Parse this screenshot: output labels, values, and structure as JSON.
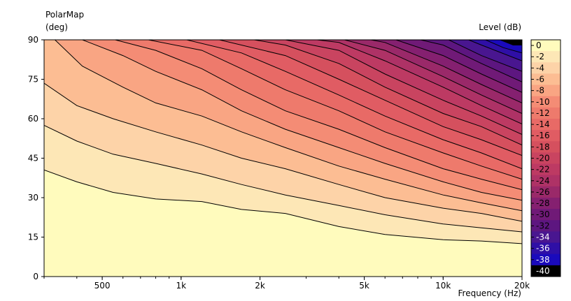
{
  "chart_data": {
    "type": "heatmap",
    "title": "PolarMap",
    "ylabel": "(deg)",
    "xlabel": "Frequency  (Hz)",
    "colorbar_label": "Level  (dB)",
    "x_scale": "log",
    "xlim": [
      300,
      20000
    ],
    "ylim": [
      0,
      90
    ],
    "x_ticks": [
      {
        "value": 500,
        "label": "500"
      },
      {
        "value": 1000,
        "label": "1k"
      },
      {
        "value": 2000,
        "label": "2k"
      },
      {
        "value": 5000,
        "label": "5k"
      },
      {
        "value": 10000,
        "label": "10k"
      },
      {
        "value": 20000,
        "label": "20k"
      }
    ],
    "y_ticks": [
      0,
      15,
      30,
      45,
      60,
      75,
      90
    ],
    "colorbar": {
      "levels": [
        0,
        -2,
        -4,
        -6,
        -8,
        -10,
        -12,
        -14,
        -16,
        -18,
        -20,
        -22,
        -24,
        -26,
        -28,
        -30,
        -32,
        -34,
        -36,
        -38,
        -40
      ],
      "colors": [
        "#fffbbd",
        "#fde7b6",
        "#fdd3a8",
        "#fcbd93",
        "#f9a583",
        "#f48c75",
        "#ee7a6c",
        "#e86a66",
        "#e05c63",
        "#d5505e",
        "#c94460",
        "#bd3a63",
        "#ae3266",
        "#9a2969",
        "#852070",
        "#701a77",
        "#5d1680",
        "#491690",
        "#2f0fa6",
        "#1a0abc",
        "#000000"
      ]
    },
    "contours": [
      {
        "level": -2,
        "points": [
          [
            300,
            40.5
          ],
          [
            400,
            36
          ],
          [
            550,
            32
          ],
          [
            800,
            29.5
          ],
          [
            1200,
            28.5
          ],
          [
            1700,
            25.5
          ],
          [
            2500,
            24
          ],
          [
            4000,
            19
          ],
          [
            6000,
            16
          ],
          [
            10000,
            14
          ],
          [
            14000,
            13.5
          ],
          [
            20000,
            12.5
          ]
        ]
      },
      {
        "level": -4,
        "points": [
          [
            300,
            57.5
          ],
          [
            400,
            51.5
          ],
          [
            550,
            46.5
          ],
          [
            800,
            43
          ],
          [
            1200,
            39
          ],
          [
            1700,
            35
          ],
          [
            2500,
            31
          ],
          [
            4000,
            27
          ],
          [
            6000,
            23.5
          ],
          [
            10000,
            20
          ],
          [
            14000,
            18.5
          ],
          [
            20000,
            17
          ]
        ]
      },
      {
        "level": -6,
        "points": [
          [
            300,
            73.5
          ],
          [
            400,
            65
          ],
          [
            550,
            60
          ],
          [
            800,
            55
          ],
          [
            1200,
            50
          ],
          [
            1700,
            45
          ],
          [
            2500,
            41
          ],
          [
            4000,
            35
          ],
          [
            6000,
            30
          ],
          [
            10000,
            26
          ],
          [
            14000,
            24
          ],
          [
            20000,
            21
          ]
        ]
      },
      {
        "level": -8,
        "points": [
          [
            330,
            90
          ],
          [
            420,
            80
          ],
          [
            600,
            72
          ],
          [
            800,
            66
          ],
          [
            1200,
            61
          ],
          [
            1700,
            55
          ],
          [
            2500,
            49
          ],
          [
            4000,
            42
          ],
          [
            6000,
            37
          ],
          [
            10000,
            31
          ],
          [
            14000,
            28
          ],
          [
            20000,
            25
          ]
        ]
      },
      {
        "level": -10,
        "points": [
          [
            420,
            90
          ],
          [
            600,
            84
          ],
          [
            800,
            78
          ],
          [
            1200,
            71
          ],
          [
            1700,
            63
          ],
          [
            2500,
            56
          ],
          [
            4000,
            49
          ],
          [
            6000,
            43
          ],
          [
            10000,
            36
          ],
          [
            14000,
            32
          ],
          [
            20000,
            29
          ]
        ]
      },
      {
        "level": -12,
        "points": [
          [
            560,
            90
          ],
          [
            800,
            86
          ],
          [
            1200,
            79
          ],
          [
            1700,
            71
          ],
          [
            2500,
            63
          ],
          [
            4000,
            56
          ],
          [
            6000,
            49
          ],
          [
            10000,
            41
          ],
          [
            14000,
            37
          ],
          [
            20000,
            33
          ]
        ]
      },
      {
        "level": -14,
        "points": [
          [
            750,
            90
          ],
          [
            1200,
            86
          ],
          [
            1700,
            79
          ],
          [
            2500,
            71
          ],
          [
            4000,
            63
          ],
          [
            6000,
            55
          ],
          [
            10000,
            47
          ],
          [
            14000,
            42
          ],
          [
            20000,
            37
          ]
        ]
      },
      {
        "level": -16,
        "points": [
          [
            1050,
            90
          ],
          [
            1700,
            85
          ],
          [
            2500,
            78
          ],
          [
            4000,
            69
          ],
          [
            6000,
            61
          ],
          [
            10000,
            52
          ],
          [
            14000,
            47
          ],
          [
            20000,
            41
          ]
        ]
      },
      {
        "level": -18,
        "points": [
          [
            1400,
            90
          ],
          [
            2500,
            84
          ],
          [
            4000,
            75
          ],
          [
            6000,
            67
          ],
          [
            10000,
            57
          ],
          [
            14000,
            52
          ],
          [
            20000,
            46
          ]
        ]
      },
      {
        "level": -20,
        "points": [
          [
            1900,
            90
          ],
          [
            2500,
            88
          ],
          [
            4000,
            81
          ],
          [
            6000,
            72
          ],
          [
            10000,
            62
          ],
          [
            14000,
            57
          ],
          [
            20000,
            50
          ]
        ]
      },
      {
        "level": -22,
        "points": [
          [
            2500,
            90
          ],
          [
            4000,
            86
          ],
          [
            6000,
            77
          ],
          [
            10000,
            67
          ],
          [
            14000,
            61
          ],
          [
            20000,
            54
          ]
        ]
      },
      {
        "level": -24,
        "points": [
          [
            3300,
            90
          ],
          [
            4000,
            89
          ],
          [
            6000,
            82
          ],
          [
            10000,
            72
          ],
          [
            14000,
            65
          ],
          [
            20000,
            58
          ]
        ]
      },
      {
        "level": -26,
        "points": [
          [
            4200,
            90
          ],
          [
            6000,
            86
          ],
          [
            10000,
            76
          ],
          [
            14000,
            69
          ],
          [
            20000,
            62
          ]
        ]
      },
      {
        "level": -28,
        "points": [
          [
            5300,
            90
          ],
          [
            6000,
            89
          ],
          [
            10000,
            80
          ],
          [
            14000,
            73
          ],
          [
            20000,
            66
          ]
        ]
      },
      {
        "level": -30,
        "points": [
          [
            6600,
            90
          ],
          [
            10000,
            84
          ],
          [
            14000,
            77
          ],
          [
            20000,
            70
          ]
        ]
      },
      {
        "level": -32,
        "points": [
          [
            8200,
            90
          ],
          [
            10000,
            88
          ],
          [
            14000,
            81
          ],
          [
            20000,
            74
          ]
        ]
      },
      {
        "level": -34,
        "points": [
          [
            10500,
            90
          ],
          [
            14000,
            84
          ],
          [
            20000,
            78
          ]
        ]
      },
      {
        "level": -36,
        "points": [
          [
            12500,
            90
          ],
          [
            14000,
            88
          ],
          [
            20000,
            82
          ]
        ]
      },
      {
        "level": -38,
        "points": [
          [
            14500,
            90
          ],
          [
            17000,
            87
          ],
          [
            20000,
            85
          ]
        ]
      },
      {
        "level": -40,
        "points": [
          [
            16500,
            90
          ],
          [
            18500,
            88
          ],
          [
            20000,
            88
          ]
        ]
      }
    ]
  }
}
